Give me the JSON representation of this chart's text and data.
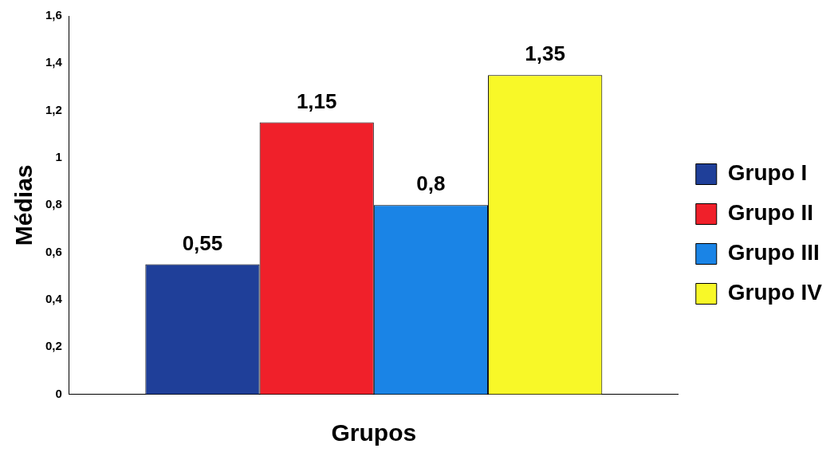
{
  "chart_data": {
    "type": "bar",
    "xlabel": "Grupos",
    "ylabel": "Médias",
    "categories": [
      null
    ],
    "series": [
      {
        "name": "Grupo I",
        "color": "#1f3f99",
        "values": [
          0.55
        ],
        "value_labels": [
          "0,55"
        ]
      },
      {
        "name": "Grupo II",
        "color": "#f0202a",
        "values": [
          1.15
        ],
        "value_labels": [
          "1,15"
        ]
      },
      {
        "name": "Grupo III",
        "color": "#1a84e6",
        "values": [
          0.8
        ],
        "value_labels": [
          "0,8"
        ]
      },
      {
        "name": "Grupo IV",
        "color": "#f8f828",
        "values": [
          1.35
        ],
        "value_labels": [
          "1,35"
        ]
      }
    ],
    "ylim": [
      0,
      1.6
    ],
    "yticks": [
      0,
      {
        "value": 0.2,
        "label": "0,2"
      },
      {
        "value": 0.4,
        "label": "0,4"
      },
      {
        "value": 0.6,
        "label": "0,6"
      },
      {
        "value": 0.8,
        "label": "0,8"
      },
      1,
      {
        "value": 1.2,
        "label": "1,2"
      },
      {
        "value": 1.4,
        "label": "1,4"
      },
      {
        "value": 1.6,
        "label": "1,6"
      }
    ],
    "legend": "right"
  }
}
